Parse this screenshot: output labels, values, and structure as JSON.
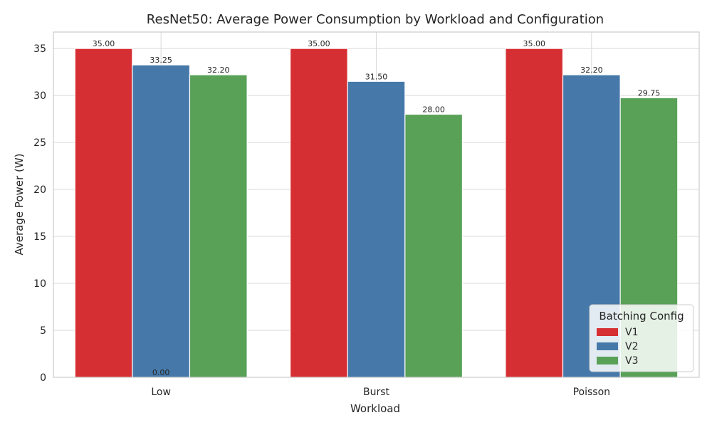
{
  "chart_data": {
    "type": "bar",
    "title": "ResNet50: Average Power Consumption by Workload and Configuration",
    "xlabel": "Workload",
    "ylabel": "Average Power (W)",
    "categories": [
      "Low",
      "Burst",
      "Poisson"
    ],
    "ylim": [
      0,
      36.75
    ],
    "yticks": [
      0,
      5,
      10,
      15,
      20,
      25,
      30,
      35
    ],
    "grid": true,
    "legend": {
      "title": "Batching Config",
      "placement": "lower-right"
    },
    "series": [
      {
        "name": "V1",
        "color": "#d62f33",
        "values": [
          35.0,
          35.0,
          35.0
        ]
      },
      {
        "name": "V2",
        "color": "#4679aa",
        "values": [
          33.25,
          31.5,
          32.2
        ]
      },
      {
        "name": "V3",
        "color": "#58a157",
        "values": [
          32.2,
          28.0,
          29.75
        ]
      }
    ],
    "annotations": [
      {
        "text": "0.00",
        "category": "Low",
        "series": "V2",
        "y": 0
      }
    ]
  }
}
